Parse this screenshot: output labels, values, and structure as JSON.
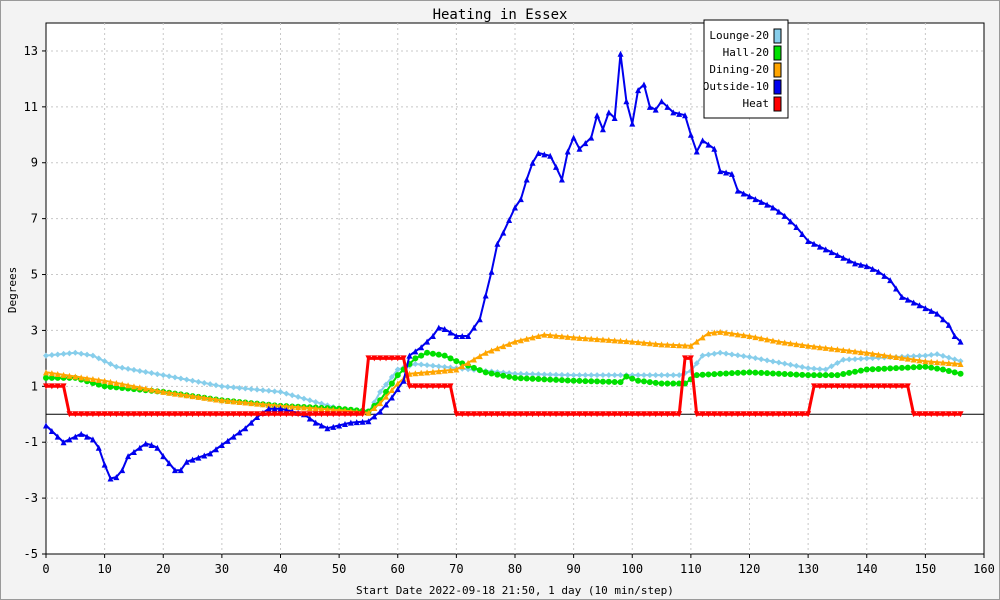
{
  "chart_data": {
    "type": "line",
    "title": "Heating in Essex",
    "xlabel": "Start Date 2022-09-18 21:50, 1 day (10 min/step)",
    "ylabel": "Degrees",
    "xlim": [
      0,
      160
    ],
    "ylim": [
      -5,
      14
    ],
    "xticks": [
      0,
      10,
      20,
      30,
      40,
      50,
      60,
      70,
      80,
      90,
      100,
      110,
      120,
      130,
      140,
      150,
      160
    ],
    "yticks": [
      -5,
      -3,
      -1,
      1,
      3,
      5,
      7,
      9,
      11,
      13
    ],
    "grid": true,
    "legend_position": "top-right",
    "series": [
      {
        "name": "Lounge-20",
        "color": "#87ceeb",
        "marker": "diamond",
        "points": [
          [
            0,
            2.1
          ],
          [
            5,
            2.2
          ],
          [
            8,
            2.1
          ],
          [
            12,
            1.7
          ],
          [
            20,
            1.4
          ],
          [
            30,
            1.0
          ],
          [
            40,
            0.8
          ],
          [
            50,
            0.2
          ],
          [
            55,
            0.05
          ],
          [
            57,
            0.8
          ],
          [
            60,
            1.6
          ],
          [
            63,
            1.8
          ],
          [
            70,
            1.65
          ],
          [
            80,
            1.45
          ],
          [
            90,
            1.4
          ],
          [
            100,
            1.4
          ],
          [
            108,
            1.4
          ],
          [
            110,
            1.55
          ],
          [
            112,
            2.1
          ],
          [
            115,
            2.2
          ],
          [
            120,
            2.05
          ],
          [
            125,
            1.85
          ],
          [
            130,
            1.65
          ],
          [
            133,
            1.6
          ],
          [
            136,
            1.95
          ],
          [
            140,
            2.0
          ],
          [
            150,
            2.1
          ],
          [
            152,
            2.15
          ],
          [
            156,
            1.9
          ]
        ]
      },
      {
        "name": "Hall-20",
        "color": "#00e000",
        "marker": "circle",
        "points": [
          [
            0,
            1.3
          ],
          [
            5,
            1.3
          ],
          [
            10,
            1.0
          ],
          [
            20,
            0.8
          ],
          [
            30,
            0.5
          ],
          [
            40,
            0.3
          ],
          [
            50,
            0.2
          ],
          [
            55,
            0.1
          ],
          [
            57,
            0.5
          ],
          [
            60,
            1.4
          ],
          [
            63,
            2.0
          ],
          [
            65,
            2.2
          ],
          [
            68,
            2.1
          ],
          [
            70,
            1.9
          ],
          [
            75,
            1.5
          ],
          [
            80,
            1.3
          ],
          [
            90,
            1.2
          ],
          [
            98,
            1.15
          ],
          [
            99,
            1.35
          ],
          [
            101,
            1.2
          ],
          [
            105,
            1.1
          ],
          [
            109,
            1.1
          ],
          [
            111,
            1.4
          ],
          [
            115,
            1.45
          ],
          [
            120,
            1.5
          ],
          [
            130,
            1.4
          ],
          [
            135,
            1.4
          ],
          [
            140,
            1.6
          ],
          [
            150,
            1.7
          ],
          [
            153,
            1.6
          ],
          [
            156,
            1.45
          ]
        ]
      },
      {
        "name": "Dining-20",
        "color": "#ffa500",
        "marker": "triangle",
        "points": [
          [
            0,
            1.5
          ],
          [
            10,
            1.2
          ],
          [
            20,
            0.8
          ],
          [
            30,
            0.5
          ],
          [
            40,
            0.3
          ],
          [
            50,
            0.15
          ],
          [
            55,
            0.05
          ],
          [
            57,
            0.4
          ],
          [
            60,
            1.1
          ],
          [
            62,
            1.45
          ],
          [
            65,
            1.5
          ],
          [
            70,
            1.6
          ],
          [
            75,
            2.2
          ],
          [
            80,
            2.6
          ],
          [
            85,
            2.85
          ],
          [
            90,
            2.75
          ],
          [
            100,
            2.6
          ],
          [
            105,
            2.5
          ],
          [
            110,
            2.45
          ],
          [
            113,
            2.9
          ],
          [
            115,
            2.95
          ],
          [
            120,
            2.8
          ],
          [
            125,
            2.6
          ],
          [
            130,
            2.45
          ],
          [
            140,
            2.2
          ],
          [
            150,
            1.9
          ],
          [
            156,
            1.8
          ]
        ]
      },
      {
        "name": "Outside-10",
        "color": "#0000ee",
        "marker": "triangle",
        "points": [
          [
            0,
            -0.4
          ],
          [
            2,
            -0.8
          ],
          [
            3,
            -1.0
          ],
          [
            5,
            -0.8
          ],
          [
            6,
            -0.7
          ],
          [
            8,
            -0.9
          ],
          [
            9,
            -1.2
          ],
          [
            10,
            -1.8
          ],
          [
            11,
            -2.3
          ],
          [
            12,
            -2.25
          ],
          [
            13,
            -2.0
          ],
          [
            14,
            -1.5
          ],
          [
            16,
            -1.2
          ],
          [
            17,
            -1.05
          ],
          [
            18,
            -1.1
          ],
          [
            19,
            -1.2
          ],
          [
            20,
            -1.5
          ],
          [
            22,
            -2.0
          ],
          [
            23,
            -2.0
          ],
          [
            24,
            -1.7
          ],
          [
            26,
            -1.55
          ],
          [
            28,
            -1.4
          ],
          [
            30,
            -1.1
          ],
          [
            32,
            -0.8
          ],
          [
            34,
            -0.5
          ],
          [
            36,
            -0.1
          ],
          [
            38,
            0.2
          ],
          [
            40,
            0.2
          ],
          [
            42,
            0.1
          ],
          [
            44,
            0.0
          ],
          [
            46,
            -0.3
          ],
          [
            48,
            -0.5
          ],
          [
            50,
            -0.4
          ],
          [
            52,
            -0.3
          ],
          [
            55,
            -0.25
          ],
          [
            57,
            0.1
          ],
          [
            59,
            0.6
          ],
          [
            61,
            1.2
          ],
          [
            62,
            2.1
          ],
          [
            64,
            2.4
          ],
          [
            66,
            2.8
          ],
          [
            67,
            3.1
          ],
          [
            68,
            3.05
          ],
          [
            70,
            2.8
          ],
          [
            72,
            2.8
          ],
          [
            74,
            3.4
          ],
          [
            76,
            5.1
          ],
          [
            77,
            6.1
          ],
          [
            78,
            6.5
          ],
          [
            80,
            7.4
          ],
          [
            81,
            7.7
          ],
          [
            82,
            8.4
          ],
          [
            83,
            9.0
          ],
          [
            84,
            9.35
          ],
          [
            86,
            9.25
          ],
          [
            87,
            8.85
          ],
          [
            88,
            8.4
          ],
          [
            89,
            9.4
          ],
          [
            90,
            9.9
          ],
          [
            91,
            9.5
          ],
          [
            93,
            9.9
          ],
          [
            94,
            10.7
          ],
          [
            95,
            10.2
          ],
          [
            96,
            10.8
          ],
          [
            97,
            10.6
          ],
          [
            98,
            12.9
          ],
          [
            99,
            11.2
          ],
          [
            100,
            10.4
          ],
          [
            101,
            11.6
          ],
          [
            102,
            11.8
          ],
          [
            103,
            11.0
          ],
          [
            104,
            10.9
          ],
          [
            105,
            11.2
          ],
          [
            106,
            11.0
          ],
          [
            107,
            10.8
          ],
          [
            109,
            10.7
          ],
          [
            110,
            10.0
          ],
          [
            111,
            9.4
          ],
          [
            112,
            9.8
          ],
          [
            114,
            9.5
          ],
          [
            115,
            8.7
          ],
          [
            117,
            8.6
          ],
          [
            118,
            8.0
          ],
          [
            120,
            7.8
          ],
          [
            122,
            7.6
          ],
          [
            124,
            7.4
          ],
          [
            126,
            7.1
          ],
          [
            128,
            6.7
          ],
          [
            130,
            6.2
          ],
          [
            132,
            6.0
          ],
          [
            134,
            5.8
          ],
          [
            136,
            5.6
          ],
          [
            138,
            5.4
          ],
          [
            140,
            5.3
          ],
          [
            142,
            5.1
          ],
          [
            144,
            4.8
          ],
          [
            145,
            4.5
          ],
          [
            146,
            4.2
          ],
          [
            148,
            4.0
          ],
          [
            150,
            3.8
          ],
          [
            152,
            3.6
          ],
          [
            154,
            3.2
          ],
          [
            155,
            2.8
          ],
          [
            156,
            2.6
          ]
        ]
      },
      {
        "name": "Heat",
        "color": "#ff0000",
        "marker": "triangle-down",
        "points": [
          [
            0,
            1
          ],
          [
            3,
            1
          ],
          [
            4,
            0
          ],
          [
            54,
            0
          ],
          [
            55,
            2
          ],
          [
            61,
            2
          ],
          [
            62,
            1
          ],
          [
            69,
            1
          ],
          [
            70,
            0
          ],
          [
            108,
            0
          ],
          [
            109,
            2
          ],
          [
            110,
            2
          ],
          [
            111,
            0
          ],
          [
            130,
            0
          ],
          [
            131,
            1
          ],
          [
            147,
            1
          ],
          [
            148,
            0
          ],
          [
            156,
            0
          ]
        ]
      }
    ]
  }
}
